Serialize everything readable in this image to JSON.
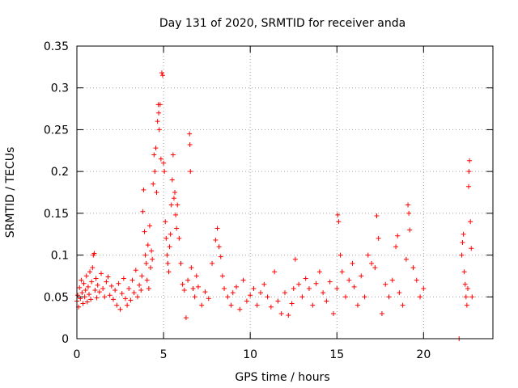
{
  "chart_data": {
    "type": "scatter",
    "title": "Day 131 of 2020, SRMTID for receiver anda",
    "xlabel": "GPS time / hours",
    "ylabel": "SRMTID / TECUs",
    "xlim": [
      0,
      24
    ],
    "ylim": [
      0,
      0.35
    ],
    "xticks": [
      0,
      5,
      10,
      15,
      20
    ],
    "xtick_labels": [
      "0",
      "5",
      "10",
      "15",
      "20"
    ],
    "yticks": [
      0,
      0.05,
      0.1,
      0.15,
      0.2,
      0.25,
      0.3,
      0.35
    ],
    "ytick_labels": [
      "0",
      "0.05",
      "0.1",
      "0.15",
      "0.2",
      "0.25",
      "0.3",
      "0.35"
    ],
    "grid": true,
    "marker": "+",
    "series": [
      {
        "name": "SRMTID",
        "color": "#ff0000",
        "points": [
          [
            0.0,
            0.045
          ],
          [
            0.05,
            0.052
          ],
          [
            0.1,
            0.038
          ],
          [
            0.15,
            0.061
          ],
          [
            0.2,
            0.048
          ],
          [
            0.25,
            0.07
          ],
          [
            0.3,
            0.055
          ],
          [
            0.35,
            0.042
          ],
          [
            0.4,
            0.066
          ],
          [
            0.45,
            0.05
          ],
          [
            0.5,
            0.058
          ],
          [
            0.55,
            0.075
          ],
          [
            0.6,
            0.044
          ],
          [
            0.65,
            0.062
          ],
          [
            0.7,
            0.053
          ],
          [
            0.75,
            0.08
          ],
          [
            0.8,
            0.047
          ],
          [
            0.85,
            0.068
          ],
          [
            0.9,
            0.085
          ],
          [
            0.95,
            0.1
          ],
          [
            1.0,
            0.102
          ],
          [
            1.05,
            0.058
          ],
          [
            1.1,
            0.072
          ],
          [
            1.15,
            0.049
          ],
          [
            1.2,
            0.064
          ],
          [
            1.3,
            0.056
          ],
          [
            1.4,
            0.078
          ],
          [
            1.5,
            0.06
          ],
          [
            1.6,
            0.05
          ],
          [
            1.7,
            0.068
          ],
          [
            1.8,
            0.074
          ],
          [
            1.9,
            0.052
          ],
          [
            2.0,
            0.063
          ],
          [
            2.1,
            0.047
          ],
          [
            2.2,
            0.058
          ],
          [
            2.3,
            0.04
          ],
          [
            2.4,
            0.066
          ],
          [
            2.5,
            0.035
          ],
          [
            2.6,
            0.054
          ],
          [
            2.7,
            0.072
          ],
          [
            2.8,
            0.048
          ],
          [
            2.9,
            0.04
          ],
          [
            3.0,
            0.06
          ],
          [
            3.1,
            0.046
          ],
          [
            3.2,
            0.07
          ],
          [
            3.3,
            0.055
          ],
          [
            3.4,
            0.082
          ],
          [
            3.5,
            0.05
          ],
          [
            3.6,
            0.064
          ],
          [
            3.7,
            0.058
          ],
          [
            3.75,
            0.075
          ],
          [
            3.8,
            0.152
          ],
          [
            3.85,
            0.178
          ],
          [
            3.9,
            0.128
          ],
          [
            3.95,
            0.1
          ],
          [
            4.0,
            0.09
          ],
          [
            4.05,
            0.07
          ],
          [
            4.1,
            0.112
          ],
          [
            4.15,
            0.06
          ],
          [
            4.2,
            0.135
          ],
          [
            4.25,
            0.085
          ],
          [
            4.3,
            0.105
          ],
          [
            4.35,
            0.095
          ],
          [
            4.4,
            0.185
          ],
          [
            4.45,
            0.22
          ],
          [
            4.5,
            0.2
          ],
          [
            4.55,
            0.228
          ],
          [
            4.6,
            0.175
          ],
          [
            4.65,
            0.26
          ],
          [
            4.7,
            0.28
          ],
          [
            4.72,
            0.27
          ],
          [
            4.75,
            0.25
          ],
          [
            4.8,
            0.28
          ],
          [
            4.85,
            0.215
          ],
          [
            4.9,
            0.318
          ],
          [
            4.95,
            0.315
          ],
          [
            5.0,
            0.21
          ],
          [
            5.05,
            0.2
          ],
          [
            5.1,
            0.14
          ],
          [
            5.15,
            0.12
          ],
          [
            5.2,
            0.1
          ],
          [
            5.25,
            0.09
          ],
          [
            5.3,
            0.08
          ],
          [
            5.35,
            0.11
          ],
          [
            5.4,
            0.125
          ],
          [
            5.45,
            0.16
          ],
          [
            5.5,
            0.19
          ],
          [
            5.55,
            0.22
          ],
          [
            5.6,
            0.168
          ],
          [
            5.65,
            0.175
          ],
          [
            5.7,
            0.148
          ],
          [
            5.75,
            0.132
          ],
          [
            5.8,
            0.16
          ],
          [
            5.9,
            0.12
          ],
          [
            6.0,
            0.09
          ],
          [
            6.1,
            0.065
          ],
          [
            6.2,
            0.058
          ],
          [
            6.3,
            0.025
          ],
          [
            6.4,
            0.07
          ],
          [
            6.5,
            0.245
          ],
          [
            6.52,
            0.232
          ],
          [
            6.55,
            0.2
          ],
          [
            6.6,
            0.085
          ],
          [
            6.7,
            0.06
          ],
          [
            6.8,
            0.05
          ],
          [
            6.9,
            0.075
          ],
          [
            7.0,
            0.062
          ],
          [
            7.2,
            0.04
          ],
          [
            7.4,
            0.056
          ],
          [
            7.6,
            0.048
          ],
          [
            7.8,
            0.09
          ],
          [
            8.0,
            0.118
          ],
          [
            8.1,
            0.132
          ],
          [
            8.2,
            0.11
          ],
          [
            8.3,
            0.098
          ],
          [
            8.4,
            0.075
          ],
          [
            8.5,
            0.06
          ],
          [
            8.7,
            0.05
          ],
          [
            8.9,
            0.04
          ],
          [
            9.0,
            0.055
          ],
          [
            9.2,
            0.062
          ],
          [
            9.4,
            0.035
          ],
          [
            9.6,
            0.07
          ],
          [
            9.8,
            0.045
          ],
          [
            10.0,
            0.052
          ],
          [
            10.2,
            0.06
          ],
          [
            10.4,
            0.04
          ],
          [
            10.6,
            0.055
          ],
          [
            10.8,
            0.065
          ],
          [
            11.0,
            0.05
          ],
          [
            11.2,
            0.038
          ],
          [
            11.4,
            0.08
          ],
          [
            11.6,
            0.045
          ],
          [
            11.8,
            0.03
          ],
          [
            12.0,
            0.055
          ],
          [
            12.2,
            0.028
          ],
          [
            12.4,
            0.042
          ],
          [
            12.5,
            0.06
          ],
          [
            12.6,
            0.095
          ],
          [
            12.8,
            0.065
          ],
          [
            13.0,
            0.05
          ],
          [
            13.2,
            0.072
          ],
          [
            13.4,
            0.06
          ],
          [
            13.6,
            0.04
          ],
          [
            13.8,
            0.066
          ],
          [
            14.0,
            0.08
          ],
          [
            14.2,
            0.055
          ],
          [
            14.4,
            0.045
          ],
          [
            14.6,
            0.068
          ],
          [
            14.8,
            0.03
          ],
          [
            15.0,
            0.06
          ],
          [
            15.05,
            0.148
          ],
          [
            15.1,
            0.14
          ],
          [
            15.2,
            0.1
          ],
          [
            15.3,
            0.08
          ],
          [
            15.5,
            0.05
          ],
          [
            15.7,
            0.07
          ],
          [
            15.9,
            0.09
          ],
          [
            16.0,
            0.062
          ],
          [
            16.2,
            0.04
          ],
          [
            16.4,
            0.075
          ],
          [
            16.6,
            0.05
          ],
          [
            16.8,
            0.1
          ],
          [
            17.0,
            0.09
          ],
          [
            17.2,
            0.085
          ],
          [
            17.3,
            0.147
          ],
          [
            17.4,
            0.12
          ],
          [
            17.6,
            0.03
          ],
          [
            17.8,
            0.065
          ],
          [
            18.0,
            0.05
          ],
          [
            18.2,
            0.07
          ],
          [
            18.4,
            0.11
          ],
          [
            18.5,
            0.123
          ],
          [
            18.6,
            0.055
          ],
          [
            18.8,
            0.04
          ],
          [
            19.0,
            0.095
          ],
          [
            19.1,
            0.16
          ],
          [
            19.15,
            0.15
          ],
          [
            19.2,
            0.13
          ],
          [
            19.4,
            0.085
          ],
          [
            19.6,
            0.07
          ],
          [
            19.8,
            0.05
          ],
          [
            20.0,
            0.06
          ],
          [
            22.05,
            0.0
          ],
          [
            22.2,
            0.1
          ],
          [
            22.25,
            0.115
          ],
          [
            22.3,
            0.125
          ],
          [
            22.35,
            0.08
          ],
          [
            22.4,
            0.065
          ],
          [
            22.45,
            0.05
          ],
          [
            22.5,
            0.04
          ],
          [
            22.55,
            0.06
          ],
          [
            22.6,
            0.182
          ],
          [
            22.62,
            0.2
          ],
          [
            22.65,
            0.213
          ],
          [
            22.7,
            0.14
          ],
          [
            22.75,
            0.108
          ],
          [
            22.8,
            0.05
          ]
        ]
      }
    ]
  }
}
